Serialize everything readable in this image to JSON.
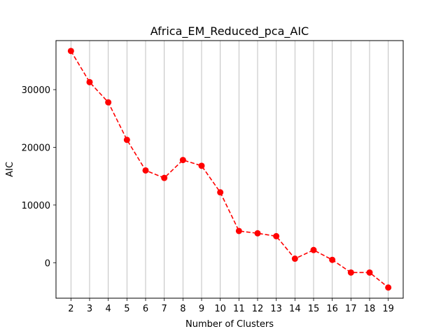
{
  "chart_data": {
    "type": "line",
    "title": "Africa_EM_Reduced_pca_AIC",
    "xlabel": "Number of Clusters",
    "ylabel": "AIC",
    "x": [
      2,
      3,
      4,
      5,
      6,
      7,
      8,
      9,
      10,
      11,
      12,
      13,
      14,
      15,
      16,
      17,
      18,
      19
    ],
    "series": [
      {
        "values": [
          36700,
          31300,
          27800,
          21300,
          16000,
          14700,
          17800,
          16800,
          12200,
          5500,
          5100,
          4600,
          700,
          2200,
          500,
          -1700,
          -1700,
          -4300
        ],
        "color": "#ff0000",
        "line_style": "dashed",
        "marker": "circle"
      }
    ],
    "xlim": [
      1.2,
      19.8
    ],
    "ylim": [
      -6150,
      38500
    ],
    "yticks": [
      0,
      10000,
      20000,
      30000
    ],
    "ytick_labels": [
      "0",
      "10000",
      "20000",
      "30000"
    ],
    "xticks": [
      2,
      3,
      4,
      5,
      6,
      7,
      8,
      9,
      10,
      11,
      12,
      13,
      14,
      15,
      16,
      17,
      18,
      19
    ],
    "xtick_labels": [
      "2",
      "3",
      "4",
      "5",
      "6",
      "7",
      "8",
      "9",
      "10",
      "11",
      "12",
      "13",
      "14",
      "15",
      "16",
      "17",
      "18",
      "19"
    ],
    "grid": "vertical",
    "grid_color": "#b0b0b0"
  }
}
